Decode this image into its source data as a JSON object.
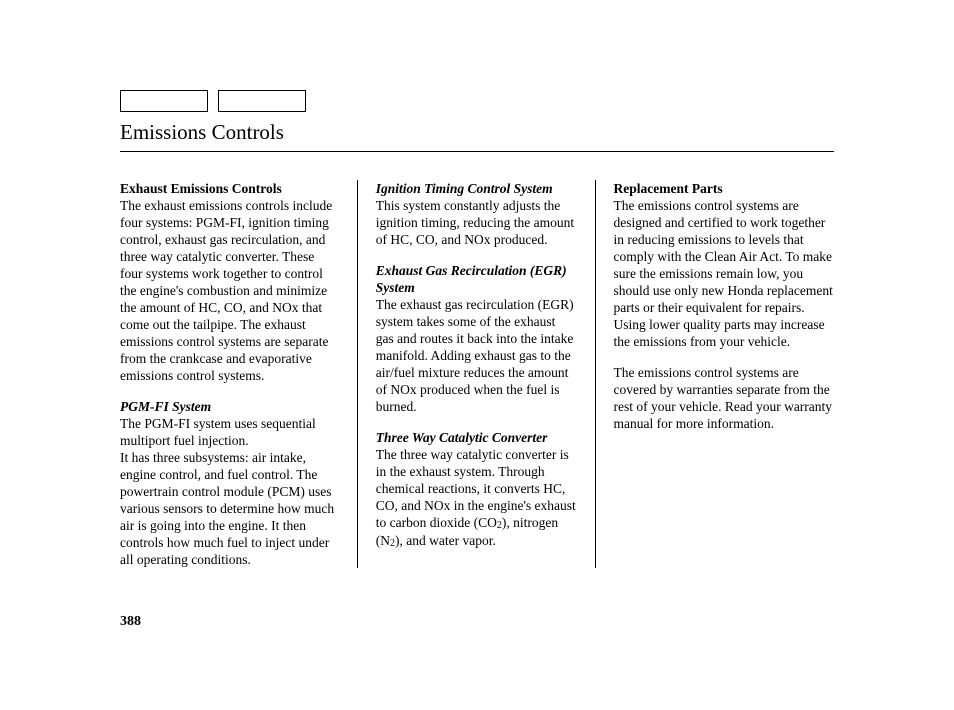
{
  "page": {
    "title": "Emissions Controls",
    "number": "388",
    "colors": {
      "text": "#000000",
      "background": "#ffffff",
      "rule": "#000000"
    },
    "typography": {
      "body_size_pt": 13.5,
      "title_size_pt": 21,
      "line_height": 1.26
    }
  },
  "col1": {
    "h1": "Exhaust Emissions Controls",
    "p1": "The exhaust emissions controls include four systems: PGM-FI, ignition timing control, exhaust gas recirculation, and three way catalytic converter. These four systems work together to control the engine's combustion and minimize the amount of HC, CO, and NOx that come out the tailpipe. The exhaust emissions control systems are separate from the crankcase and evaporative emissions control systems.",
    "h2": "PGM-FI System",
    "p2a": "The PGM-FI system uses sequential multiport fuel injection.",
    "p2b": "It has three subsystems: air intake, engine control, and fuel control. The powertrain control module (PCM) uses various sensors to determine how much air is going into the engine. It then controls how much fuel to inject under all operating conditions."
  },
  "col2": {
    "h1": "Ignition Timing Control System",
    "p1": "This system constantly adjusts the ignition timing, reducing the amount of HC, CO, and NOx produced.",
    "h2": "Exhaust Gas Recirculation (EGR) System",
    "p2": "The exhaust gas recirculation (EGR) system takes some of the exhaust gas and routes it back into the intake manifold. Adding exhaust gas to the air/fuel mixture reduces the amount of NOx produced when the fuel is burned.",
    "h3": "Three Way Catalytic Converter",
    "p3a": "The three way catalytic converter is in the exhaust system. Through chemical reactions, it converts HC, CO, and NOx in the engine's exhaust to carbon dioxide (CO",
    "p3b": "), nitrogen (N",
    "p3c": "), and water vapor.",
    "sub2": "2"
  },
  "col3": {
    "h1": "Replacement Parts",
    "p1": "The emissions control systems are designed and certified to work to­gether in reducing emissions to levels that comply with the Clean Air Act. To make sure the emissions remain low, you should use only new Honda replacement parts or their equivalent for repairs. Using lower quality parts may increase the emissions from your vehicle.",
    "p2": "The emissions control systems are covered by warranties separate from the rest of your vehicle. Read your warranty manual for more informa­tion."
  }
}
